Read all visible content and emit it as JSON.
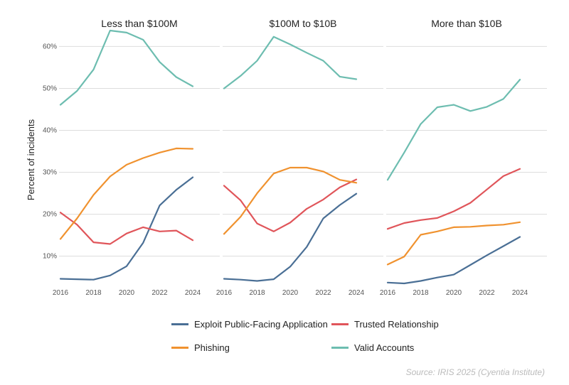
{
  "chart_data": {
    "type": "line",
    "ylabel": "Percent of incidents",
    "ylim": [
      3.5,
      66
    ],
    "yticks": [
      10,
      20,
      30,
      40,
      50,
      60
    ],
    "ytick_labels": [
      "10%",
      "20%",
      "30%",
      "40%",
      "50%",
      "60%"
    ],
    "x": [
      2016,
      2017,
      2018,
      2019,
      2020,
      2021,
      2022,
      2023,
      2024
    ],
    "xticks": [
      2016,
      2018,
      2020,
      2022,
      2024
    ],
    "xtick_labels": [
      "2016",
      "2018",
      "2020",
      "2022",
      "2024"
    ],
    "grid": true,
    "legend_position": "bottom",
    "legend": [
      {
        "name": "Exploit Public-Facing Application",
        "color": "#4a6f95"
      },
      {
        "name": "Trusted Relationship",
        "color": "#e0555a"
      },
      {
        "name": "Phishing",
        "color": "#f0922f"
      },
      {
        "name": "Valid Accounts",
        "color": "#6dbdb0"
      }
    ],
    "panels": [
      {
        "title": "Less than $100M",
        "series": [
          {
            "name": "Exploit Public-Facing Application",
            "values": [
              4.6,
              4.5,
              4.4,
              5.4,
              7.6,
              13.2,
              22.1,
              25.8,
              28.8
            ]
          },
          {
            "name": "Trusted Relationship",
            "values": [
              20.4,
              17.5,
              13.3,
              12.9,
              15.4,
              16.9,
              15.9,
              16.1,
              13.8
            ]
          },
          {
            "name": "Phishing",
            "values": [
              14.1,
              19.0,
              24.6,
              29.0,
              31.8,
              33.4,
              34.7,
              35.7,
              35.6
            ]
          },
          {
            "name": "Valid Accounts",
            "values": [
              46.1,
              49.4,
              54.5,
              63.8,
              63.3,
              61.6,
              56.3,
              52.7,
              50.5
            ]
          }
        ]
      },
      {
        "title": "$100M to $10B",
        "series": [
          {
            "name": "Exploit Public-Facing Application",
            "values": [
              4.6,
              4.4,
              4.1,
              4.5,
              7.5,
              12.2,
              19.0,
              22.2,
              24.9
            ]
          },
          {
            "name": "Trusted Relationship",
            "values": [
              26.8,
              23.3,
              17.8,
              15.9,
              18.0,
              21.3,
              23.5,
              26.4,
              28.3
            ]
          },
          {
            "name": "Phishing",
            "values": [
              15.3,
              19.4,
              25.0,
              29.7,
              31.1,
              31.1,
              30.2,
              28.2,
              27.5
            ]
          },
          {
            "name": "Valid Accounts",
            "values": [
              50.0,
              53.0,
              56.6,
              62.3,
              60.5,
              58.5,
              56.6,
              52.8,
              52.2
            ]
          }
        ]
      },
      {
        "title": "More than $10B",
        "series": [
          {
            "name": "Exploit Public-Facing Application",
            "values": [
              3.7,
              3.5,
              4.1,
              4.9,
              5.6,
              7.9,
              10.2,
              12.4,
              14.6
            ]
          },
          {
            "name": "Trusted Relationship",
            "values": [
              16.5,
              17.9,
              18.6,
              19.1,
              20.7,
              22.7,
              25.9,
              29.1,
              30.8
            ]
          },
          {
            "name": "Phishing",
            "values": [
              8.0,
              9.9,
              15.1,
              15.9,
              16.9,
              17.0,
              17.3,
              17.5,
              18.1
            ]
          },
          {
            "name": "Valid Accounts",
            "values": [
              28.2,
              34.7,
              41.5,
              45.5,
              46.1,
              44.6,
              45.6,
              47.5,
              52.1
            ]
          }
        ]
      }
    ]
  },
  "source": "Source: IRIS 2025 (Cyentia Institute)"
}
